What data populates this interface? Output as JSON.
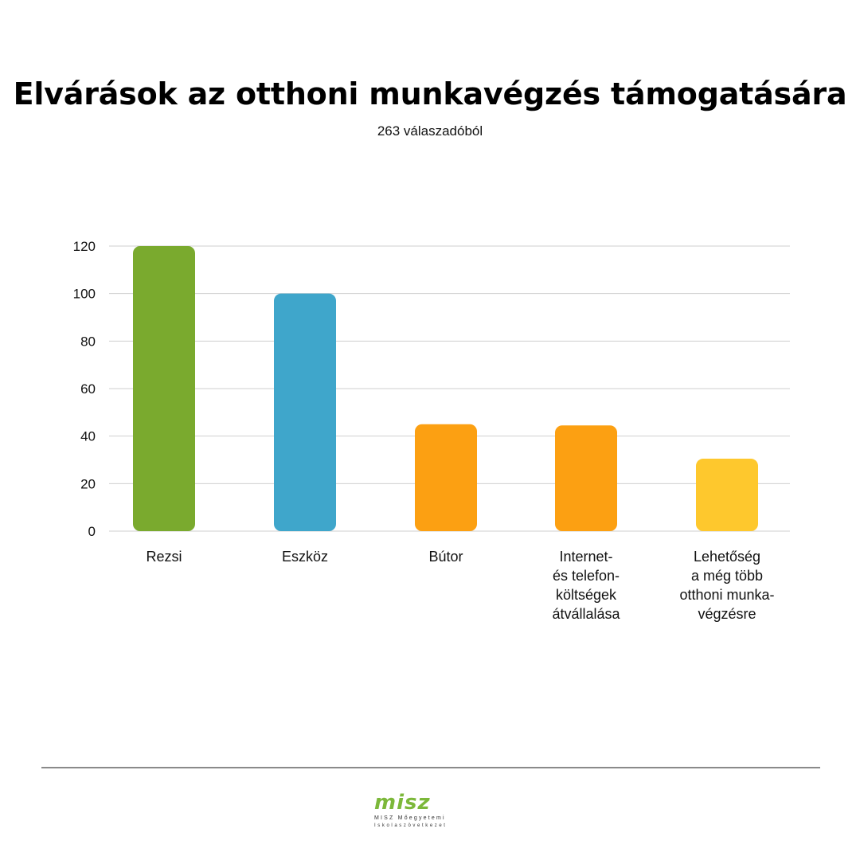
{
  "header": {
    "title": "Elvárások az otthoni munkavégzés támogatására",
    "subtitle": "263 válaszadóból"
  },
  "chart_data": {
    "type": "bar",
    "title": "Elvárások az otthoni munkavégzés támogatására",
    "subtitle": "263 válaszadóból",
    "xlabel": "",
    "ylabel": "",
    "ylim": [
      0,
      120
    ],
    "yticks": [
      "0",
      "20",
      "40",
      "60",
      "80",
      "100",
      "120"
    ],
    "grid": true,
    "categories": [
      [
        "Rezsi"
      ],
      [
        "Eszköz"
      ],
      [
        "Bútor"
      ],
      [
        "Internet-",
        "és telefon-",
        "költségek",
        "átvállalása"
      ],
      [
        "Lehetőség",
        "a még több",
        "otthoni munka-",
        "végzésre"
      ]
    ],
    "values": [
      120,
      100,
      45,
      44.5,
      30.5
    ],
    "colors": [
      "#7aaa2e",
      "#3fa6cb",
      "#fca012",
      "#fca012",
      "#fec82d"
    ]
  },
  "logo": {
    "mark": "misz",
    "line1": "MISZ Mőegyetemi",
    "line2": "Iskolaszövetkezet"
  }
}
